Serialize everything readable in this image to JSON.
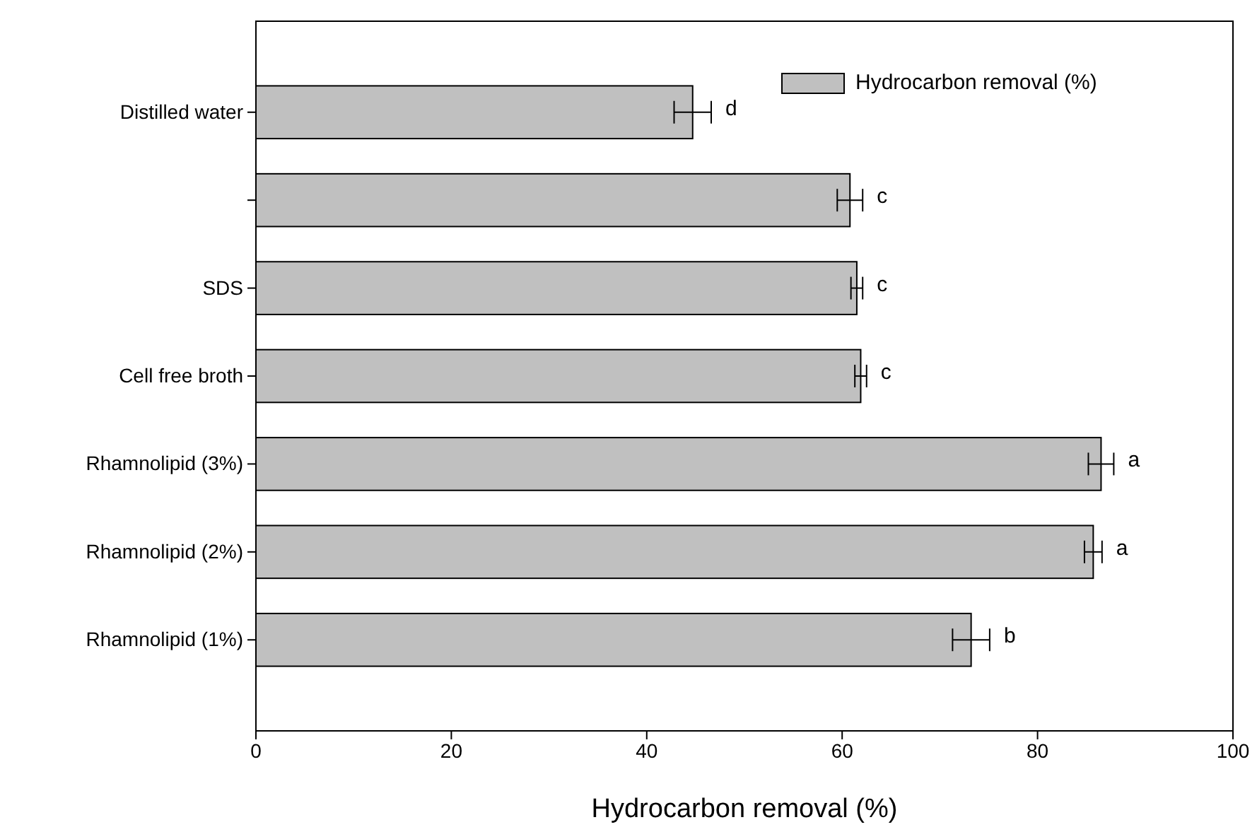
{
  "chart_data": {
    "type": "bar",
    "orientation": "horizontal",
    "xlabel": "Hydrocarbon removal (%)",
    "categories": [
      "Distilled water",
      null,
      "SDS",
      "Cell free broth",
      "Rhamnolipid (3%)",
      "Rhamnolipid (2%)",
      "Rhamnolipid (1%)"
    ],
    "series": [
      {
        "name": "Hydrocarbon removal (%)",
        "color": "#c0c0c0",
        "values": [
          44.7,
          60.8,
          61.5,
          61.9,
          86.5,
          85.7,
          73.2
        ],
        "errors": [
          1.9,
          1.3,
          0.6,
          0.6,
          1.3,
          0.9,
          1.9
        ]
      }
    ],
    "xlim": [
      0,
      100
    ],
    "xticks": [
      0,
      20,
      40,
      60,
      80,
      100
    ],
    "grid": false,
    "legend": "top right",
    "annotations": [
      "d",
      "c",
      "c",
      "c",
      "a",
      "a",
      "b"
    ]
  }
}
